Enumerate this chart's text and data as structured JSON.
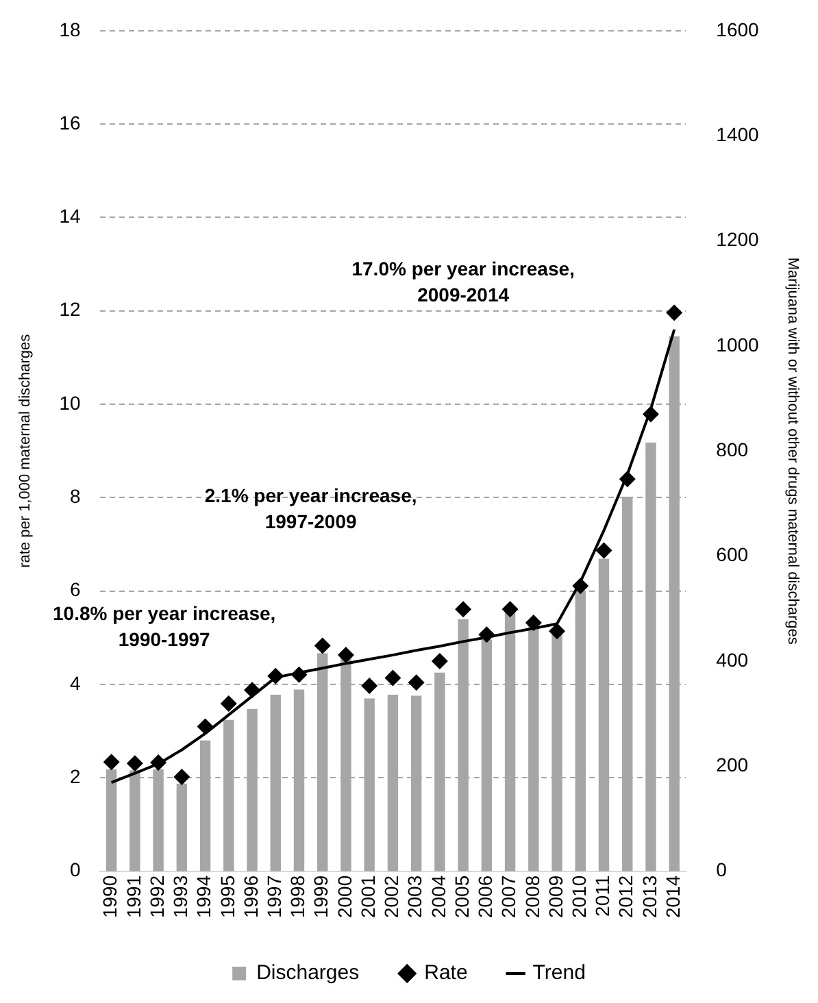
{
  "chart_data": {
    "type": "bar",
    "ylabel": "rate per 1,000 maternal discharges",
    "y2label": "Marijuana with or without other drugs maternal discharges",
    "categories": [
      "1990",
      "1991",
      "1992",
      "1993",
      "1994",
      "1995",
      "1996",
      "1997",
      "1998",
      "1999",
      "2000",
      "2001",
      "2002",
      "2003",
      "2004",
      "2005",
      "2006",
      "2007",
      "2008",
      "2009",
      "2010",
      "2011",
      "2012",
      "2013",
      "2014"
    ],
    "series": [
      {
        "name": "Discharges",
        "axis": "y2",
        "color": "#a6a6a6",
        "values": [
          194,
          192,
          194,
          167,
          249,
          288,
          309,
          336,
          346,
          415,
          415,
          329,
          336,
          334,
          378,
          480,
          441,
          492,
          466,
          456,
          533,
          595,
          713,
          816,
          1018
        ]
      },
      {
        "name": "Rate",
        "type": "scatter",
        "marker": "diamond",
        "color": "#000000",
        "values": [
          2.34,
          2.31,
          2.33,
          2.02,
          3.1,
          3.59,
          3.88,
          4.18,
          4.21,
          4.83,
          4.63,
          3.97,
          4.14,
          4.04,
          4.5,
          5.61,
          5.07,
          5.61,
          5.32,
          5.14,
          6.11,
          6.87,
          8.4,
          9.79,
          11.96
        ]
      },
      {
        "name": "Trend",
        "type": "line",
        "marker": "none",
        "line_style": "solid",
        "color": "#000000",
        "values": [
          1.9,
          2.1,
          2.3,
          2.6,
          2.95,
          3.35,
          3.75,
          4.15,
          4.25,
          4.35,
          4.45,
          4.54,
          4.63,
          4.73,
          4.82,
          4.92,
          5.01,
          5.11,
          5.2,
          5.3,
          6.2,
          7.3,
          8.5,
          9.9,
          11.6
        ]
      }
    ],
    "ylim": [
      0,
      18
    ],
    "yticks": [
      0,
      2,
      4,
      6,
      8,
      10,
      12,
      14,
      16,
      18
    ],
    "y2lim": [
      0,
      1600
    ],
    "y2ticks": [
      0,
      200,
      400,
      600,
      800,
      1000,
      1200,
      1400,
      1600
    ],
    "grid": "y",
    "legend": "bottom",
    "annotations": [
      "10.8% per year increase,\n1990-1997",
      "2.1% per year increase,\n1997-2009",
      "17.0% per year increase,\n2009-2014"
    ]
  }
}
